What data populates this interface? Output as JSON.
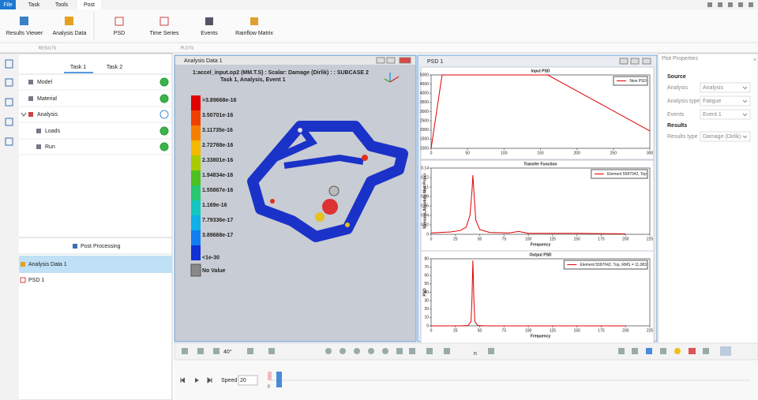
{
  "menu": {
    "tabs": [
      "File",
      "Task",
      "Tools",
      "Post"
    ]
  },
  "ribbon": {
    "buttons": [
      "Results Viewer",
      "Analysis Data",
      "PSD",
      "Time Series",
      "Events",
      "Rainflow Matrix"
    ],
    "groups": [
      "RESULTS",
      "PLOTS"
    ]
  },
  "task_panel": {
    "tabs": [
      "Task 1",
      "Task 2"
    ],
    "tree": [
      "Model",
      "Material",
      "Analysis",
      "Loads",
      "Run"
    ],
    "post_header": "Post Processing",
    "post_items": [
      "Analysis Data 1",
      "PSD 1"
    ]
  },
  "viewport": {
    "title": "Analysis Data 1",
    "header": [
      "1:accel_input.op2 (MM.T.S)  : Scalar: Damage (Dirlik) :  : SUBCASE 2",
      "Task 1, Analysis, Event 1"
    ],
    "legend": {
      "labels": [
        ">3.89668e-16",
        "3.50701e-16",
        "3.11735e-16",
        "2.72768e-16",
        "2.33801e-16",
        "1.94834e-16",
        "1.55867e-16",
        "1.169e-16",
        "7.79336e-17",
        "3.89668e-17",
        "<1e-30"
      ],
      "colors": [
        "#e00000",
        "#f04000",
        "#f58000",
        "#f5b800",
        "#a8cc00",
        "#4cc020",
        "#28c870",
        "#10c8c0",
        "#10b0e8",
        "#1080f0",
        "#1030d8"
      ]
    },
    "no_value": "No Value"
  },
  "psd_window": {
    "title": "PSD 1",
    "charts": [
      {
        "type": "line",
        "title": "Input PSD",
        "xlim": [
          0,
          300
        ],
        "xticks": [
          0,
          50,
          100,
          150,
          200,
          250,
          300
        ],
        "ylim": [
          1000,
          5000
        ],
        "yticks": [
          1000,
          1500,
          2000,
          2500,
          3000,
          3500,
          4000,
          4500,
          5000
        ],
        "series": [
          {
            "name": "New PSD",
            "color": "#e00000",
            "x": [
              0,
              15,
              160,
              300
            ],
            "values": [
              1000,
              5000,
              5000,
              1950
            ]
          }
        ]
      },
      {
        "type": "line",
        "title": "Transfer Function",
        "xlabel": "Frequency",
        "ylabel": "Stresses,Absolute Max Princi",
        "xlim": [
          0,
          225
        ],
        "xticks": [
          0,
          25,
          50,
          75,
          100,
          125,
          150,
          175,
          200,
          225
        ],
        "ylim": [
          0,
          0.14
        ],
        "yticks": [
          0,
          0.02,
          0.04,
          0.06,
          0.08,
          0.1,
          0.12,
          0.14
        ],
        "series": [
          {
            "name": "Element 5587042, Top",
            "color": "#e00000",
            "x": [
              0,
              10,
              20,
              30,
              36,
              40,
              42,
              43,
              44,
              46,
              50,
              60,
              80,
              90,
              100,
              150,
              200
            ],
            "values": [
              0.003,
              0.004,
              0.005,
              0.008,
              0.015,
              0.04,
              0.09,
              0.125,
              0.09,
              0.03,
              0.01,
              0.004,
              0.003,
              0.006,
              0.002,
              0.002,
              0.001
            ]
          }
        ]
      },
      {
        "type": "line",
        "title": "Output PSD",
        "xlabel": "Frequency",
        "ylabel": "PSD",
        "xlim": [
          0,
          225
        ],
        "xticks": [
          0,
          25,
          50,
          75,
          100,
          125,
          150,
          175,
          200,
          225
        ],
        "ylim": [
          0,
          80
        ],
        "yticks": [
          0,
          10,
          20,
          30,
          40,
          50,
          60,
          70,
          80
        ],
        "series": [
          {
            "name": "Element 5587042, Top, RMS = 11.083",
            "color": "#e00000",
            "x": [
              0,
              30,
              38,
              41,
              42,
              43,
              44,
              45,
              48,
              55,
              100,
              200
            ],
            "values": [
              0,
              0,
              0.5,
              5,
              30,
              78,
              30,
              5,
              0.5,
              0,
              0,
              0
            ]
          }
        ]
      }
    ]
  },
  "properties": {
    "title": "Plot Properties",
    "source": "Source",
    "rows": [
      {
        "label": "Analysis",
        "value": "Analysis"
      },
      {
        "label": "Analysis type",
        "value": "Fatigue"
      },
      {
        "label": "Events",
        "value": "Event 1"
      }
    ],
    "results": "Results",
    "results_rows": [
      {
        "label": "Results type",
        "value": "Damage (Dirlik)"
      }
    ]
  },
  "toolbar": {
    "angle": "40°",
    "n": "n"
  },
  "timeline": {
    "speed_label": "Speed",
    "speed": "20",
    "frame": "0"
  }
}
